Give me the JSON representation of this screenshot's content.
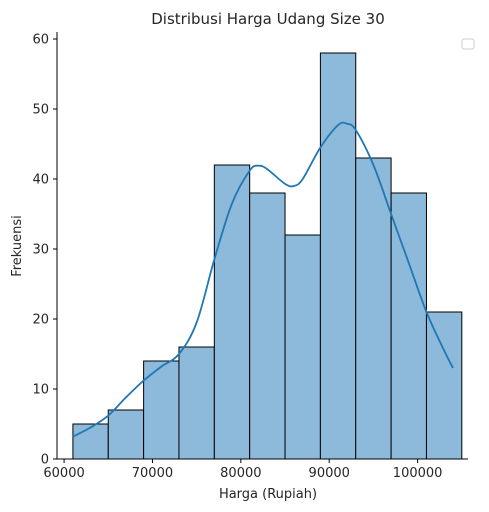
{
  "chart_data": {
    "type": "histogram",
    "title": "Distribusi Harga Udang Size 30",
    "xlabel": "Harga (Rupiah)",
    "ylabel": "Frekuensi",
    "xlim": [
      60000,
      105000
    ],
    "ylim": [
      0,
      61
    ],
    "xticks": [
      60000,
      70000,
      80000,
      90000,
      100000
    ],
    "yticks": [
      0,
      10,
      20,
      30,
      40,
      50,
      60
    ],
    "bins": [
      {
        "x0": 61000,
        "x1": 65000,
        "count": 5
      },
      {
        "x0": 65000,
        "x1": 69000,
        "count": 7
      },
      {
        "x0": 69000,
        "x1": 73000,
        "count": 14
      },
      {
        "x0": 73000,
        "x1": 77000,
        "count": 16
      },
      {
        "x0": 77000,
        "x1": 81000,
        "count": 42
      },
      {
        "x0": 81000,
        "x1": 85000,
        "count": 38
      },
      {
        "x0": 85000,
        "x1": 89000,
        "count": 32
      },
      {
        "x0": 89000,
        "x1": 93000,
        "count": 58
      },
      {
        "x0": 93000,
        "x1": 97000,
        "count": 43
      },
      {
        "x0": 97000,
        "x1": 101000,
        "count": 38
      },
      {
        "x0": 101000,
        "x1": 105000,
        "count": 21
      }
    ],
    "kde": {
      "x": [
        61000,
        63000,
        65000,
        67000,
        69000,
        71000,
        73000,
        75000,
        77000,
        79000,
        81000,
        82000,
        83000,
        85000,
        86000,
        87000,
        89000,
        91000,
        92000,
        93000,
        95000,
        97000,
        99000,
        101000,
        103000,
        104000
      ],
      "y": [
        3.2,
        4.5,
        6.2,
        8.8,
        11.2,
        13.2,
        15.0,
        19.5,
        28.5,
        36.5,
        41.2,
        41.9,
        41.4,
        39.3,
        39.0,
        40.0,
        44.5,
        47.7,
        47.9,
        47.0,
        42.0,
        35.0,
        28.0,
        21.0,
        15.5,
        13.0
      ]
    },
    "bar_fill": "#8dbadb",
    "bar_edge": "#000000",
    "kde_color": "#1f77b4",
    "grid": false,
    "legend": "top-right (empty)"
  }
}
